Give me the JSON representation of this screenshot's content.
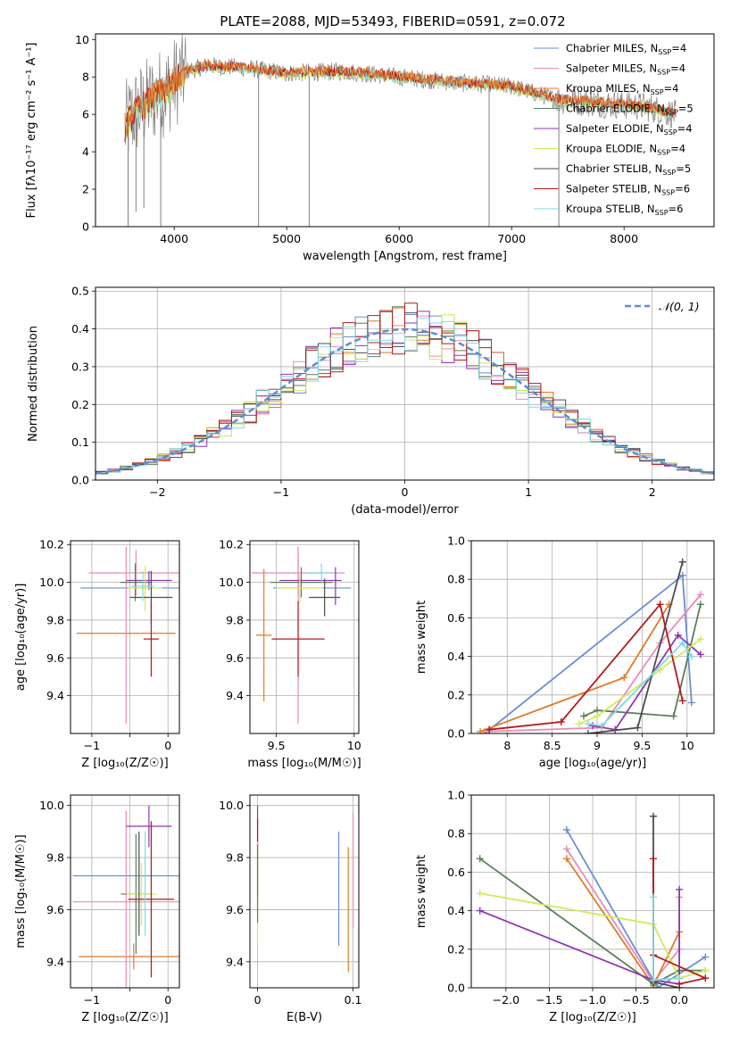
{
  "figure": {
    "title": "PLATE=2088, MJD=53493, FIBERID=0591, z=0.072"
  },
  "colors": {
    "miles_chabrier": "#6a8fd4",
    "miles_salpeter": "#e88cb6",
    "miles_kroupa": "#e07b2a",
    "elodie_chabrier": "#5a7f5a",
    "elodie_salpeter": "#8e35b0",
    "elodie_kroupa": "#d4e85a",
    "stelib_chabrier": "#4d4d4d",
    "stelib_salpeter": "#b31b1b",
    "stelib_kroupa": "#7fdbe0",
    "data": "#808080",
    "normal": "#5b8fd0"
  },
  "chart_data": [
    {
      "id": "spectrum",
      "type": "line",
      "title": "PLATE=2088, MJD=53493, FIBERID=0591, z=0.072",
      "xlabel": "wavelength [Angstrom, rest frame]",
      "ylabel": "Flux [fλ10⁻¹⁷ erg cm⁻² s⁻¹ A⁻¹]",
      "xlim": [
        3300,
        8800
      ],
      "ylim": [
        0,
        10.3
      ],
      "xticks": [
        4000,
        5000,
        6000,
        7000,
        8000
      ],
      "yticks": [
        0,
        2,
        4,
        6,
        8,
        10
      ],
      "grid": false,
      "legend_position": "top-right",
      "legend": [
        {
          "label": "Chabrier MILES, N",
          "sub": "SSP",
          "tail": "=4",
          "color": "miles_chabrier"
        },
        {
          "label": "Salpeter MILES, N",
          "sub": "SSP",
          "tail": "=4",
          "color": "miles_salpeter"
        },
        {
          "label": "Kroupa MILES, N",
          "sub": "SSP",
          "tail": "=4",
          "color": "miles_kroupa"
        },
        {
          "label": "Chabrier ELODIE, N",
          "sub": "SSP",
          "tail": "=5",
          "color": "elodie_chabrier"
        },
        {
          "label": "Salpeter ELODIE, N",
          "sub": "SSP",
          "tail": "=4",
          "color": "elodie_salpeter"
        },
        {
          "label": "Kroupa ELODIE, N",
          "sub": "SSP",
          "tail": "=4",
          "color": "elodie_kroupa"
        },
        {
          "label": "Chabrier STELIB, N",
          "sub": "SSP",
          "tail": "=5",
          "color": "stelib_chabrier"
        },
        {
          "label": "Salpeter STELIB, N",
          "sub": "SSP",
          "tail": "=6",
          "color": "stelib_salpeter"
        },
        {
          "label": "Kroupa STELIB, N",
          "sub": "SSP",
          "tail": "=6",
          "color": "stelib_kroupa"
        }
      ],
      "continuum_points": [
        [
          3550,
          5.2
        ],
        [
          3650,
          6.1
        ],
        [
          3800,
          6.8
        ],
        [
          3950,
          7.4
        ],
        [
          4100,
          8.3
        ],
        [
          4300,
          8.6
        ],
        [
          4600,
          8.5
        ],
        [
          5000,
          8.2
        ],
        [
          5500,
          8.3
        ],
        [
          6000,
          8.0
        ],
        [
          6500,
          7.7
        ],
        [
          7000,
          7.5
        ],
        [
          7400,
          6.8
        ],
        [
          7800,
          6.6
        ],
        [
          8200,
          6.4
        ],
        [
          8450,
          6.0
        ]
      ],
      "data_range": [
        3560,
        8460
      ],
      "absorption_dips": [
        {
          "x": 3590,
          "y": 0.0
        },
        {
          "x": 3660,
          "y": 0.8
        },
        {
          "x": 3730,
          "y": 1.0
        },
        {
          "x": 3880,
          "y": 0.0
        },
        {
          "x": 4750,
          "y": 0.0
        },
        {
          "x": 5200,
          "y": 0.0
        },
        {
          "x": 6800,
          "y": 0.0
        },
        {
          "x": 7420,
          "y": 0.0
        }
      ]
    },
    {
      "id": "residuals",
      "type": "histogram",
      "xlabel": "(data-model)/error",
      "ylabel": "Normed distribution",
      "xlim": [
        -2.5,
        2.5
      ],
      "ylim": [
        0,
        0.51
      ],
      "xticks": [
        -2,
        -1,
        0,
        1,
        2
      ],
      "yticks": [
        0.0,
        0.1,
        0.2,
        0.3,
        0.4,
        0.5
      ],
      "grid": true,
      "legend_position": "top-right",
      "legend": [
        {
          "label": "𝒩(0, 1)",
          "color": "normal",
          "dashed": true
        }
      ],
      "bin_width": 0.1,
      "series": [
        "miles_chabrier",
        "miles_salpeter",
        "miles_kroupa",
        "elodie_chabrier",
        "elodie_salpeter",
        "elodie_kroupa",
        "stelib_chabrier",
        "stelib_salpeter",
        "stelib_kroupa"
      ]
    },
    {
      "id": "age_vs_Z",
      "type": "errorbar",
      "xlabel": "Z [log₁₀(Z/Z☉)]",
      "ylabel": "age  [log₁₀(age/yr)]",
      "xlim": [
        -1.28,
        0.15
      ],
      "ylim": [
        9.2,
        10.22
      ],
      "xticks": [
        -1,
        -0.5,
        0
      ],
      "xticklabels": [
        "−1",
        "",
        "0"
      ],
      "yticks": [
        9.4,
        9.6,
        9.8,
        10.0,
        10.2
      ],
      "grid": true,
      "points": [
        {
          "x": -0.42,
          "xerr": 0.62,
          "y": 10.05,
          "yerr": 0.12,
          "color": "miles_salpeter"
        },
        {
          "x": -0.55,
          "xerr": 0.65,
          "y": 9.73,
          "yerr": 0.0,
          "color": "miles_kroupa"
        },
        {
          "x": -0.3,
          "xerr": 0.85,
          "y": 9.97,
          "yerr": 0.0,
          "color": "miles_chabrier"
        },
        {
          "x": -0.55,
          "xerr": 0.0,
          "y": 9.72,
          "yerr": 0.47,
          "color": "miles_salpeter"
        },
        {
          "x": -0.43,
          "xerr": 0.2,
          "y": 10.0,
          "yerr": 0.1,
          "color": "elodie_chabrier"
        },
        {
          "x": -0.25,
          "xerr": 0.3,
          "y": 10.01,
          "yerr": 0.05,
          "color": "elodie_salpeter"
        },
        {
          "x": -0.3,
          "xerr": 0.22,
          "y": 9.97,
          "yerr": 0.12,
          "color": "elodie_kroupa"
        },
        {
          "x": -0.22,
          "xerr": 0.28,
          "y": 9.92,
          "yerr": 0.14,
          "color": "stelib_chabrier"
        },
        {
          "x": -0.22,
          "xerr": 0.1,
          "y": 9.7,
          "yerr": 0.2,
          "color": "stelib_salpeter"
        },
        {
          "x": -0.33,
          "xerr": 0.15,
          "y": 9.98,
          "yerr": 0.08,
          "color": "stelib_kroupa"
        }
      ]
    },
    {
      "id": "age_vs_mass",
      "type": "errorbar",
      "xlabel": "mass [log₁₀(M/M☉)]",
      "ylabel": "",
      "xlim": [
        9.33,
        10.03
      ],
      "ylim": [
        9.2,
        10.22
      ],
      "xticks": [
        9.5,
        10.0
      ],
      "yticks": [
        9.4,
        9.6,
        9.8,
        10.0,
        10.2
      ],
      "grid": true,
      "points": [
        {
          "x": 9.64,
          "xerr": 0.3,
          "y": 10.05,
          "yerr": 0.12,
          "color": "miles_salpeter"
        },
        {
          "x": 9.42,
          "xerr": 0.05,
          "y": 9.72,
          "yerr": 0.35,
          "color": "miles_kroupa"
        },
        {
          "x": 9.73,
          "xerr": 0.25,
          "y": 9.97,
          "yerr": 0.0,
          "color": "miles_chabrier"
        },
        {
          "x": 9.64,
          "xerr": 0.0,
          "y": 9.72,
          "yerr": 0.47,
          "color": "miles_salpeter"
        },
        {
          "x": 9.66,
          "xerr": 0.2,
          "y": 10.0,
          "yerr": 0.08,
          "color": "elodie_chabrier"
        },
        {
          "x": 9.72,
          "xerr": 0.2,
          "y": 10.01,
          "yerr": 0.0,
          "color": "elodie_salpeter"
        },
        {
          "x": 9.65,
          "xerr": 0.15,
          "y": 9.97,
          "yerr": 0.08,
          "color": "elodie_kroupa"
        },
        {
          "x": 9.81,
          "xerr": 0.1,
          "y": 9.92,
          "yerr": 0.1,
          "color": "stelib_chabrier"
        },
        {
          "x": 9.64,
          "xerr": 0.17,
          "y": 9.7,
          "yerr": 0.2,
          "color": "stelib_salpeter"
        },
        {
          "x": 9.79,
          "xerr": 0.1,
          "y": 10.05,
          "yerr": 0.05,
          "color": "stelib_kroupa"
        },
        {
          "x": 9.88,
          "xerr": 0.0,
          "y": 9.98,
          "yerr": 0.1,
          "color": "elodie_salpeter"
        }
      ]
    },
    {
      "id": "weight_vs_age",
      "type": "line",
      "xlabel": "age  [log₁₀(age/yr)]",
      "ylabel": "mass weight",
      "xlim": [
        7.6,
        10.3
      ],
      "ylim": [
        0,
        1.0
      ],
      "xticks": [
        8.0,
        8.5,
        9.0,
        9.5,
        10.0
      ],
      "yticks": [
        0.0,
        0.2,
        0.4,
        0.6,
        0.8,
        1.0
      ],
      "grid": true,
      "series": [
        {
          "color": "miles_chabrier",
          "x": [
            7.75,
            9.95,
            10.05
          ],
          "y": [
            0.0,
            0.82,
            0.16
          ]
        },
        {
          "color": "miles_salpeter",
          "x": [
            7.75,
            9.05,
            9.7,
            10.15
          ],
          "y": [
            0.01,
            0.03,
            0.47,
            0.72
          ]
        },
        {
          "color": "miles_kroupa",
          "x": [
            7.7,
            9.3,
            9.8
          ],
          "y": [
            0.01,
            0.29,
            0.67
          ]
        },
        {
          "color": "elodie_chabrier",
          "x": [
            8.85,
            9.0,
            9.85,
            10.15
          ],
          "y": [
            0.09,
            0.12,
            0.09,
            0.67
          ]
        },
        {
          "color": "elodie_salpeter",
          "x": [
            8.95,
            9.2,
            9.9,
            10.15
          ],
          "y": [
            0.04,
            0.02,
            0.51,
            0.41
          ]
        },
        {
          "color": "elodie_kroupa",
          "x": [
            8.8,
            9.0,
            9.7,
            10.15
          ],
          "y": [
            0.05,
            0.09,
            0.33,
            0.49
          ]
        },
        {
          "color": "stelib_chabrier",
          "x": [
            8.9,
            9.45,
            9.95
          ],
          "y": [
            0.0,
            0.03,
            0.89
          ]
        },
        {
          "color": "stelib_salpeter",
          "x": [
            7.8,
            8.6,
            9.7,
            9.95
          ],
          "y": [
            0.02,
            0.06,
            0.67,
            0.17
          ]
        },
        {
          "color": "stelib_kroupa",
          "x": [
            8.9,
            9.05,
            9.95,
            10.05
          ],
          "y": [
            0.05,
            0.04,
            0.47,
            0.4
          ]
        }
      ]
    },
    {
      "id": "mass_vs_Z",
      "type": "errorbar",
      "xlabel": "Z [log₁₀(Z/Z☉)]",
      "ylabel": "mass [log₁₀(M/M☉)]",
      "xlim": [
        -1.28,
        0.15
      ],
      "ylim": [
        9.3,
        10.04
      ],
      "xticks": [
        -1,
        -0.5,
        0
      ],
      "xticklabels": [
        "−1",
        "",
        "0"
      ],
      "yticks": [
        9.4,
        9.6,
        9.8,
        10.0
      ],
      "grid": true,
      "points": [
        {
          "x": -0.45,
          "xerr": 0.72,
          "y": 9.42,
          "yerr": 0.05,
          "color": "miles_kroupa"
        },
        {
          "x": -0.55,
          "xerr": 0.7,
          "y": 9.73,
          "yerr": 0.0,
          "color": "miles_chabrier"
        },
        {
          "x": -0.55,
          "xerr": 0.7,
          "y": 9.63,
          "yerr": 0.35,
          "color": "miles_salpeter"
        },
        {
          "x": -0.42,
          "xerr": 0.2,
          "y": 9.66,
          "yerr": 0.23,
          "color": "elodie_chabrier"
        },
        {
          "x": -0.25,
          "xerr": 0.3,
          "y": 9.92,
          "yerr": 0.08,
          "color": "elodie_salpeter"
        },
        {
          "x": -0.35,
          "xerr": 0.2,
          "y": 9.66,
          "yerr": 0.12,
          "color": "elodie_kroupa"
        },
        {
          "x": -0.38,
          "xerr": 0.0,
          "y": 9.7,
          "yerr": 0.2,
          "color": "stelib_chabrier"
        },
        {
          "x": -0.22,
          "xerr": 0.3,
          "y": 9.64,
          "yerr": 0.3,
          "color": "stelib_salpeter"
        },
        {
          "x": -0.3,
          "xerr": 0.0,
          "y": 9.7,
          "yerr": 0.2,
          "color": "stelib_kroupa"
        }
      ]
    },
    {
      "id": "mass_vs_ebv",
      "type": "errorbar",
      "xlabel": "E(B-V)",
      "ylabel": "",
      "xlim": [
        -0.008,
        0.106
      ],
      "ylim": [
        9.3,
        10.04
      ],
      "xticks": [
        0.0,
        0.1
      ],
      "yticks": [
        9.4,
        9.6,
        9.8,
        10.0
      ],
      "grid": true,
      "points": [
        {
          "x": 0.0,
          "xerr": 0.0,
          "y": 9.92,
          "yerr": 0.08,
          "color": "elodie_salpeter"
        },
        {
          "x": 0.0,
          "xerr": 0.0,
          "y": 9.8,
          "yerr": 0.15,
          "color": "stelib_salpeter"
        },
        {
          "x": 0.0,
          "xerr": 0.0,
          "y": 9.66,
          "yerr": 0.2,
          "color": "elodie_kroupa"
        },
        {
          "x": 0.0,
          "xerr": 0.0,
          "y": 9.7,
          "yerr": 0.15,
          "color": "elodie_chabrier"
        },
        {
          "x": 0.085,
          "xerr": 0.0,
          "y": 9.68,
          "yerr": 0.22,
          "color": "miles_chabrier"
        },
        {
          "x": 0.095,
          "xerr": 0.0,
          "y": 9.6,
          "yerr": 0.24,
          "color": "miles_kroupa"
        },
        {
          "x": 0.1,
          "xerr": 0.0,
          "y": 9.75,
          "yerr": 0.22,
          "color": "miles_salpeter"
        }
      ]
    },
    {
      "id": "weight_vs_Z",
      "type": "line",
      "xlabel": "Z [log₁₀(Z/Z☉)]",
      "ylabel": "mass weight",
      "xlim": [
        -2.4,
        0.4
      ],
      "ylim": [
        0,
        1.0
      ],
      "xticks": [
        -2.0,
        -1.5,
        -1.0,
        -0.5,
        0.0
      ],
      "xticklabels": [
        "−2.0",
        "−1.5",
        "−1.0",
        "−0.5",
        "0.0"
      ],
      "yticks": [
        0.0,
        0.2,
        0.4,
        0.6,
        0.8,
        1.0
      ],
      "grid": true,
      "series": [
        {
          "color": "miles_chabrier",
          "x": [
            -1.3,
            -0.25,
            0.3
          ],
          "y": [
            0.82,
            0.0,
            0.16
          ]
        },
        {
          "color": "miles_salpeter",
          "x": [
            -1.3,
            -0.3,
            0.0,
            0.0
          ],
          "y": [
            0.72,
            0.03,
            0.2,
            0.47
          ]
        },
        {
          "color": "miles_kroupa",
          "x": [
            -1.3,
            -0.3,
            0.0
          ],
          "y": [
            0.67,
            0.01,
            0.29
          ]
        },
        {
          "color": "elodie_chabrier",
          "x": [
            -2.3,
            -0.3,
            0.0,
            0.3
          ],
          "y": [
            0.67,
            0.02,
            0.09,
            0.09
          ]
        },
        {
          "color": "elodie_salpeter",
          "x": [
            -2.3,
            -0.3,
            0.0,
            0.0
          ],
          "y": [
            0.4,
            0.04,
            0.02,
            0.51
          ]
        },
        {
          "color": "elodie_kroupa",
          "x": [
            -2.3,
            -0.3,
            0.0,
            0.3
          ],
          "y": [
            0.49,
            0.33,
            0.05,
            0.09
          ]
        },
        {
          "color": "stelib_chabrier",
          "x": [
            -0.3,
            -0.3,
            0.0
          ],
          "y": [
            0.89,
            0.03,
            0.0
          ]
        },
        {
          "color": "stelib_salpeter",
          "x": [
            -0.3,
            -0.3,
            0.3,
            0.0
          ],
          "y": [
            0.67,
            0.17,
            0.05,
            0.02
          ]
        },
        {
          "color": "stelib_kroupa",
          "x": [
            -0.3,
            -0.3,
            0.0
          ],
          "y": [
            0.47,
            0.04,
            0.05
          ]
        }
      ]
    }
  ]
}
